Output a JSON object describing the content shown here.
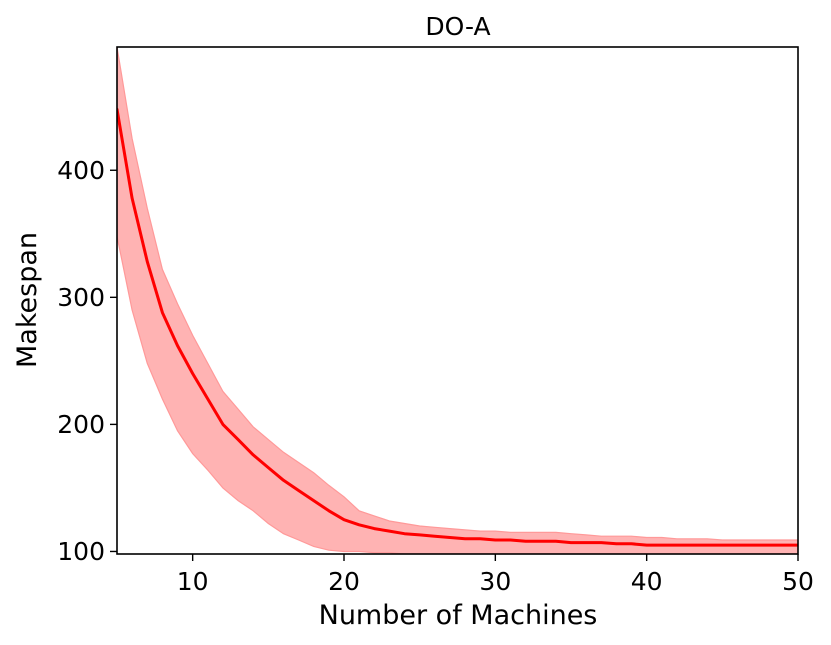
{
  "chart_data": {
    "type": "line",
    "title": "DO-A",
    "xlabel": "Number of Machines",
    "ylabel": "Makespan",
    "xlim": [
      5,
      50
    ],
    "ylim": [
      98,
      497
    ],
    "grid": false,
    "legend": "none",
    "x_ticks": [
      10,
      20,
      30,
      40,
      50
    ],
    "y_ticks": [
      100,
      200,
      300,
      400
    ],
    "series": [
      {
        "color": "#ff0000",
        "band_color": "#ff9999",
        "x": [
          5,
          6,
          7,
          8,
          9,
          10,
          11,
          12,
          13,
          14,
          15,
          16,
          17,
          18,
          19,
          20,
          21,
          22,
          23,
          24,
          25,
          26,
          27,
          28,
          29,
          30,
          31,
          32,
          33,
          34,
          35,
          36,
          37,
          38,
          39,
          40,
          41,
          42,
          43,
          44,
          45,
          46,
          47,
          48,
          49,
          50
        ],
        "y": [
          448,
          378,
          328,
          288,
          262,
          240,
          220,
          200,
          188,
          176,
          166,
          156,
          148,
          140,
          132,
          125,
          121,
          118,
          116,
          114,
          113,
          112,
          111,
          110,
          110,
          109,
          109,
          108,
          108,
          108,
          107,
          107,
          107,
          106,
          106,
          105,
          105,
          105,
          105,
          105,
          105,
          105,
          105,
          105,
          105,
          105
        ],
        "lower": [
          348,
          290,
          248,
          220,
          195,
          177,
          164,
          150,
          140,
          132,
          122,
          114,
          109,
          104,
          101,
          100,
          100,
          99,
          99,
          98,
          98,
          98,
          98,
          98,
          98,
          98,
          98,
          98,
          98,
          98,
          98,
          98,
          98,
          98,
          98,
          98,
          98,
          98,
          98,
          98,
          98,
          98,
          98,
          98,
          98,
          98
        ],
        "upper": [
          497,
          425,
          370,
          322,
          295,
          270,
          248,
          226,
          212,
          198,
          188,
          178,
          170,
          162,
          152,
          143,
          132,
          128,
          124,
          122,
          120,
          119,
          118,
          117,
          116,
          116,
          115,
          115,
          115,
          115,
          114,
          113,
          112,
          112,
          112,
          111,
          111,
          110,
          110,
          110,
          109,
          109,
          109,
          109,
          109,
          109
        ]
      }
    ]
  }
}
